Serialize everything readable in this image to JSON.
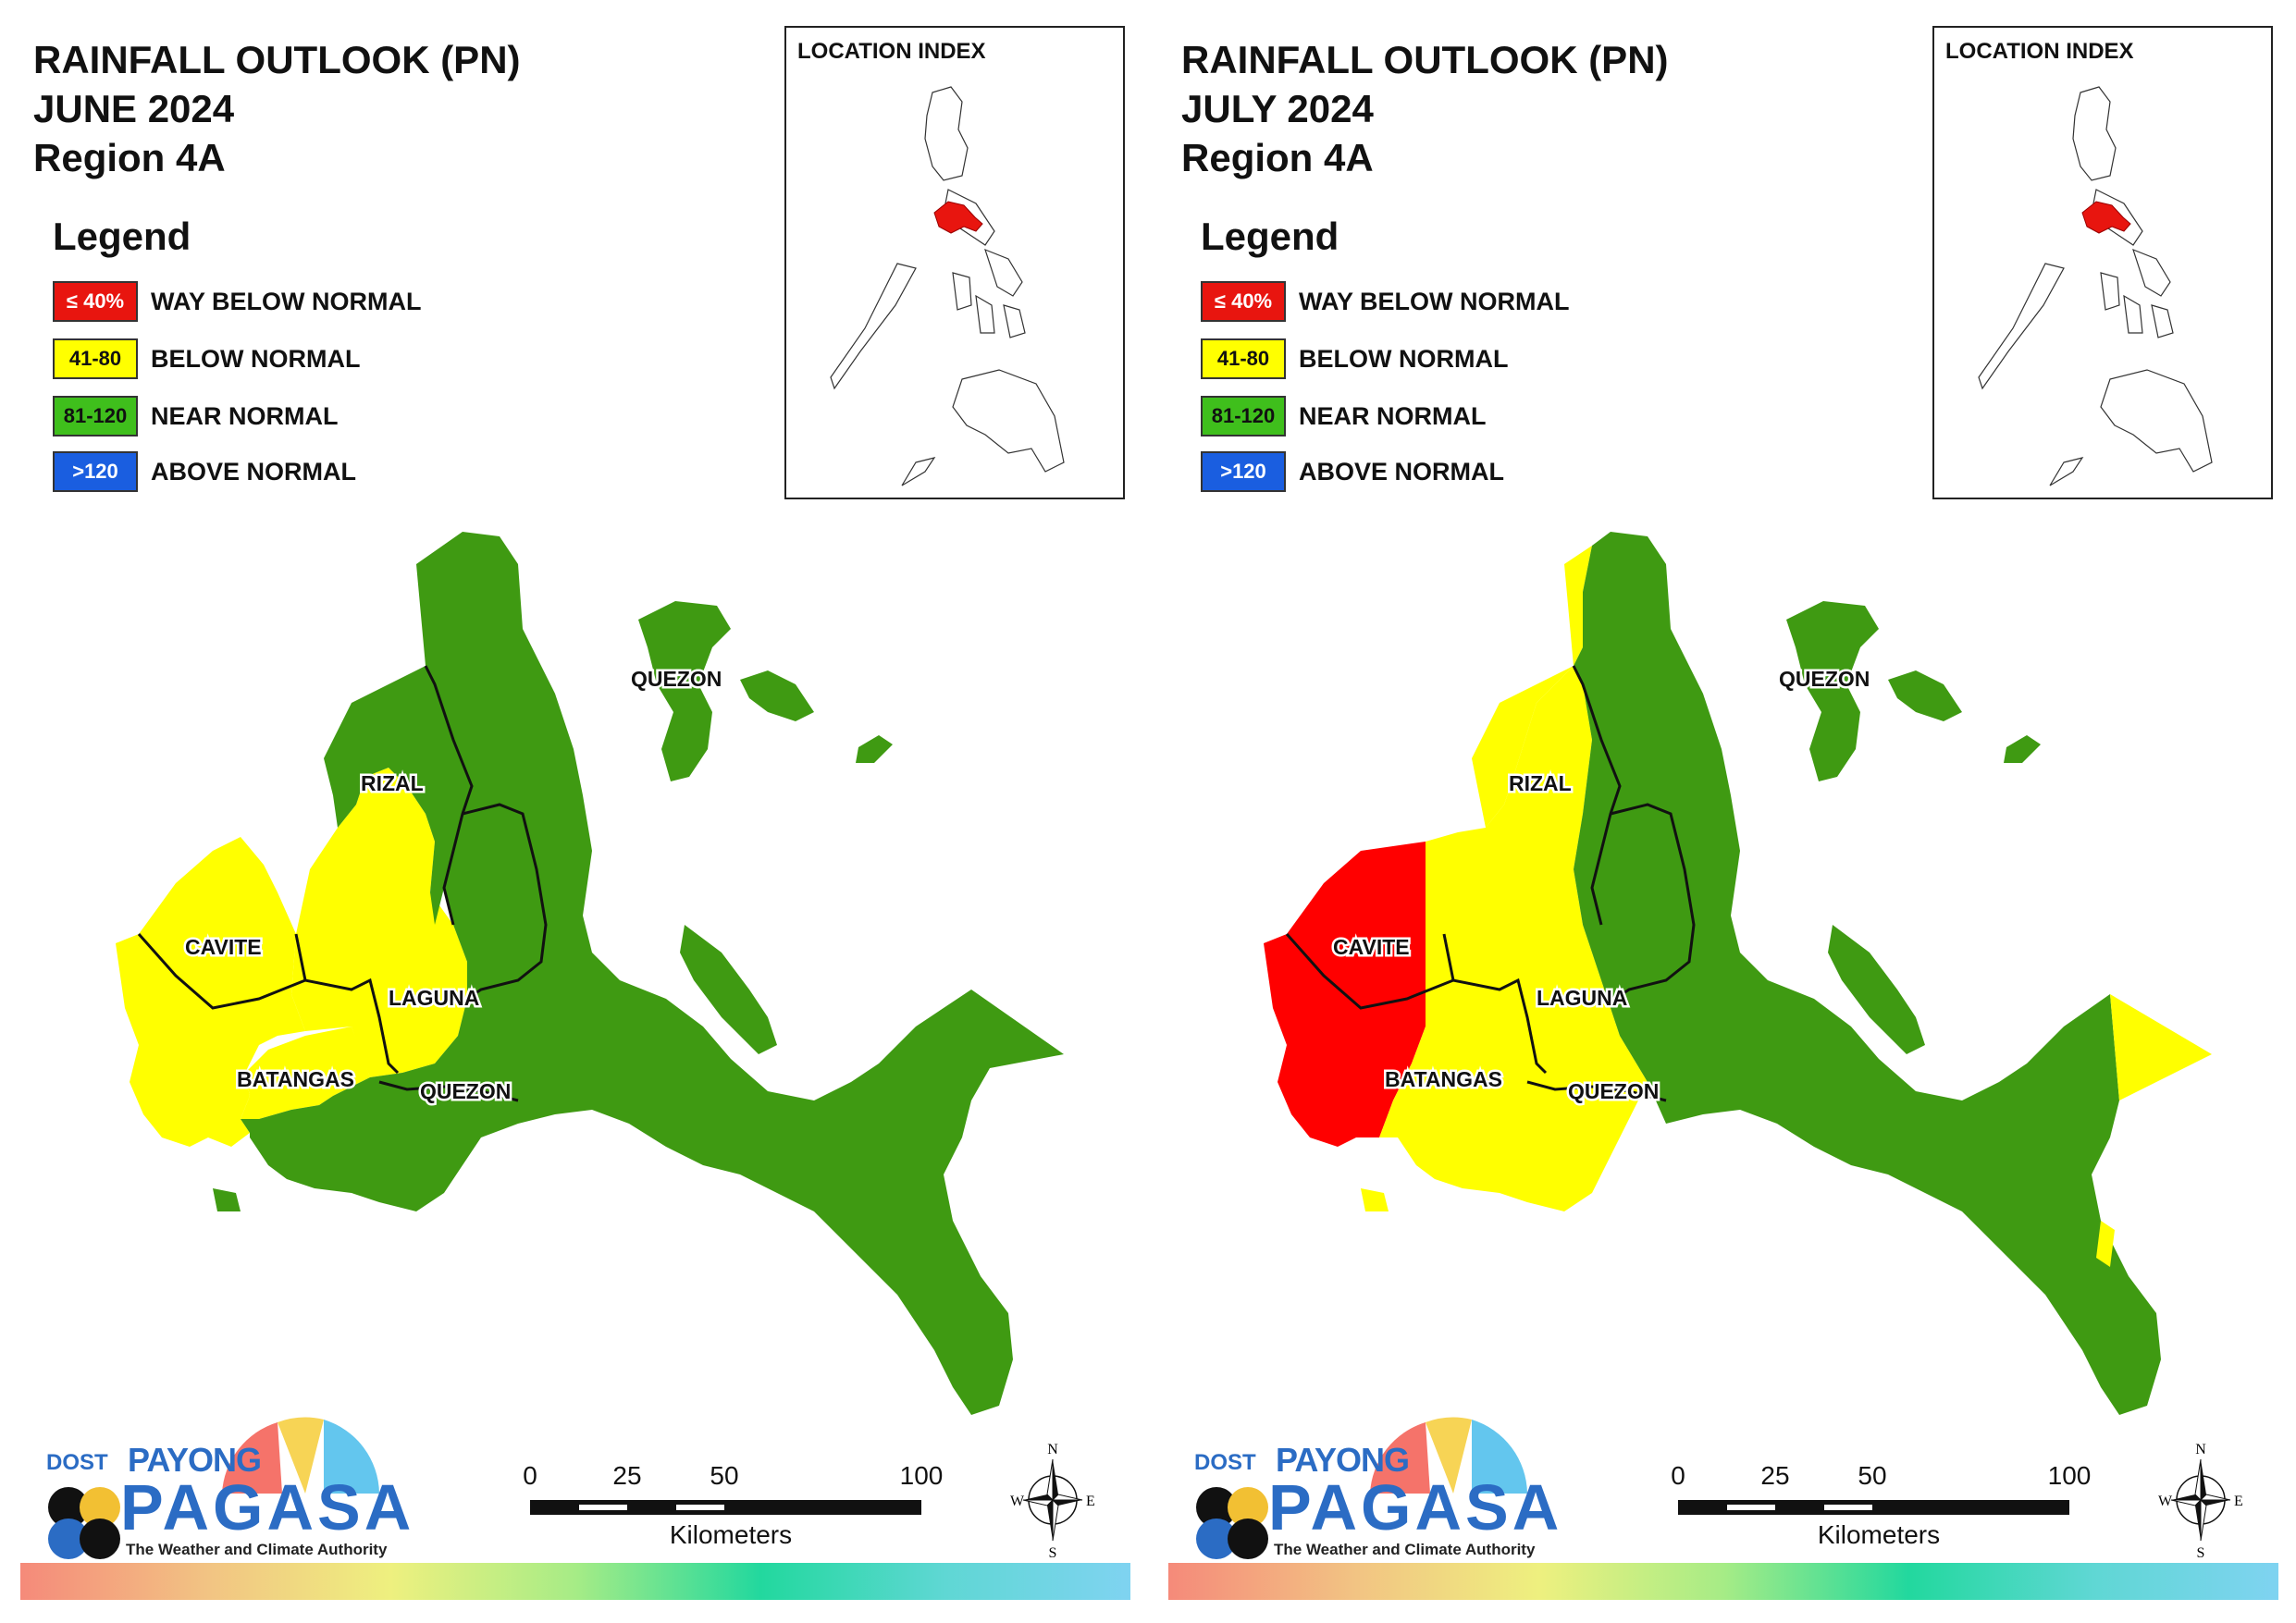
{
  "panels": [
    {
      "title_line1": "RAINFALL OUTLOOK (PN)",
      "title_line2": "JUNE 2024",
      "title_line3": "Region 4A",
      "province_labels": [
        "RIZAL",
        "CAVITE",
        "LAGUNA",
        "BATANGAS",
        "QUEZON",
        "QUEZON"
      ],
      "province_categories": {
        "CAVITE": "BELOW NORMAL",
        "BATANGAS": "BELOW NORMAL / NEAR NORMAL",
        "LAGUNA": "BELOW NORMAL / NEAR NORMAL",
        "RIZAL": "BELOW NORMAL / NEAR NORMAL",
        "QUEZON": "NEAR NORMAL"
      }
    },
    {
      "title_line1": "RAINFALL OUTLOOK (PN)",
      "title_line2": "JULY 2024",
      "title_line3": "Region 4A",
      "province_labels": [
        "RIZAL",
        "CAVITE",
        "LAGUNA",
        "BATANGAS",
        "QUEZON",
        "QUEZON"
      ],
      "province_categories": {
        "CAVITE": "WAY BELOW NORMAL / BELOW NORMAL",
        "BATANGAS": "WAY BELOW NORMAL / BELOW NORMAL",
        "LAGUNA": "BELOW NORMAL",
        "RIZAL": "BELOW NORMAL / NEAR NORMAL",
        "QUEZON": "NEAR NORMAL / BELOW NORMAL"
      }
    }
  ],
  "legend": {
    "heading": "Legend",
    "items": [
      {
        "range": "≤ 40%",
        "label": "WAY BELOW NORMAL",
        "color": "#e8150f",
        "text_color": "#ffffff"
      },
      {
        "range": "41-80",
        "label": "BELOW NORMAL",
        "color": "#ffff00",
        "text_color": "#111111"
      },
      {
        "range": "81-120",
        "label": "NEAR NORMAL",
        "color": "#3fbf1c",
        "text_color": "#111111"
      },
      {
        "range": ">120",
        "label": "ABOVE NORMAL",
        "color": "#1a5ee0",
        "text_color": "#ffffff"
      }
    ]
  },
  "location_index": {
    "title": "LOCATION INDEX",
    "highlight_color": "#e8150f"
  },
  "scale": {
    "ticks": [
      "0",
      "25",
      "50",
      "100"
    ],
    "unit": "Kilometers"
  },
  "compass": {
    "n": "N",
    "s": "S",
    "e": "E",
    "w": "W"
  },
  "logo": {
    "dost": "DOST",
    "payong": "PAYONG",
    "pagasa": "PAGASA",
    "tagline": "The Weather and Climate Authority"
  },
  "colors": {
    "near_normal": "#3f9a12",
    "below_normal": "#ffff00",
    "way_below_normal": "#ff0000",
    "boundary": "#111111"
  }
}
